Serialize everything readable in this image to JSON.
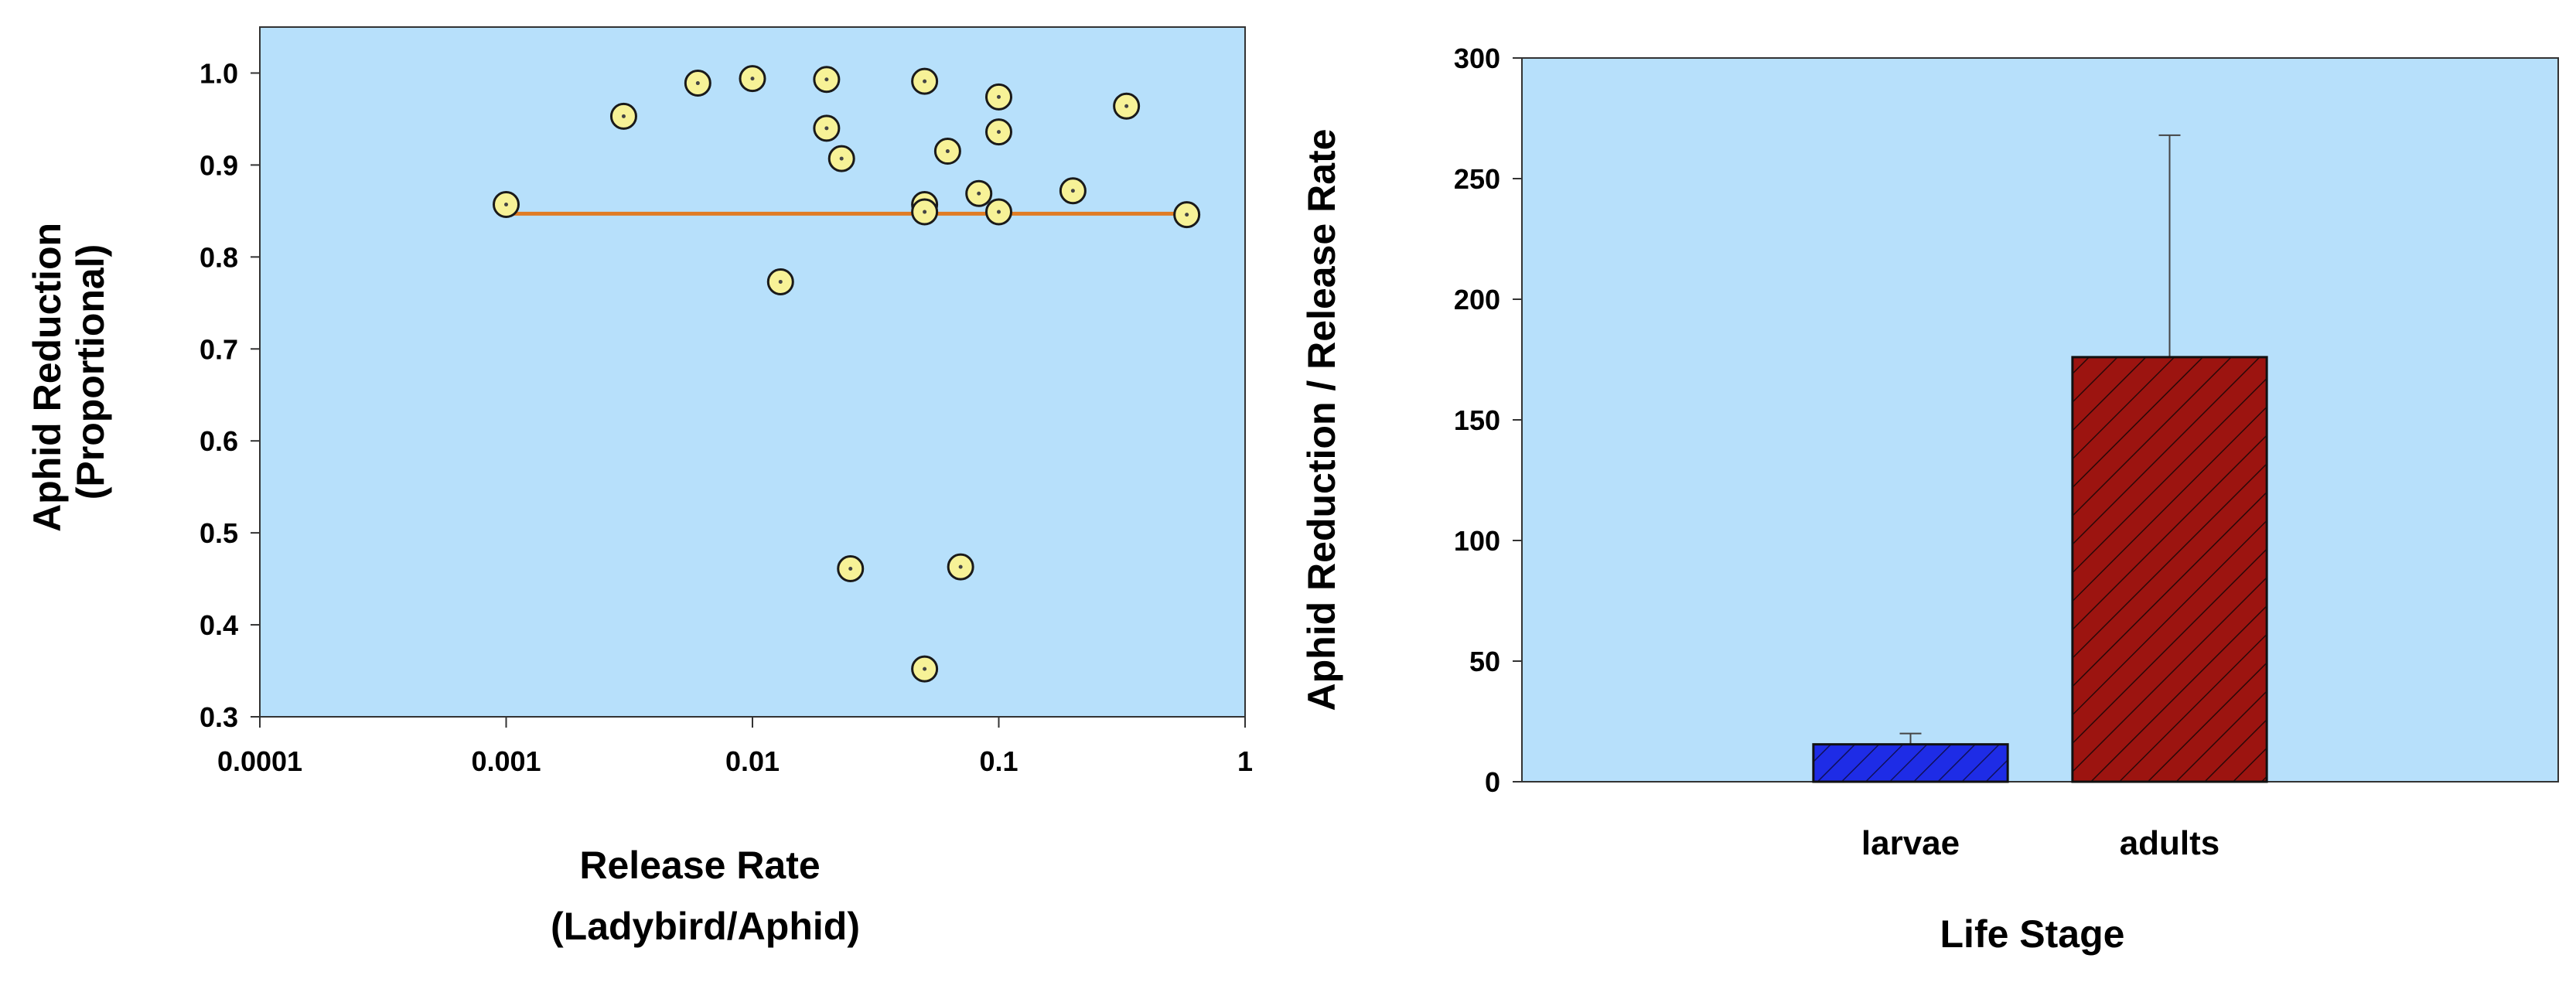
{
  "chart_data": [
    {
      "type": "scatter",
      "xlabel": [
        "Release Rate",
        "(Ladybird/Aphid)"
      ],
      "ylabel": [
        "Aphid Reduction",
        "(Proportional)"
      ],
      "x_scale": "log",
      "xlim": [
        0.0001,
        1
      ],
      "ylim": [
        0.3,
        1.05
      ],
      "x_ticks": [
        0.0001,
        0.001,
        0.01,
        0.1,
        1
      ],
      "x_tick_labels": [
        "0.0001",
        "0.001",
        "0.01",
        "0.1",
        "1"
      ],
      "y_ticks": [
        0.3,
        0.4,
        0.5,
        0.6,
        0.7,
        0.8,
        0.9,
        1.0
      ],
      "y_tick_labels": [
        "0.3",
        "0.4",
        "0.5",
        "0.6",
        "0.7",
        "0.8",
        "0.9",
        "1.0"
      ],
      "points": [
        {
          "x": 0.001,
          "y": 0.857
        },
        {
          "x": 0.003,
          "y": 0.953
        },
        {
          "x": 0.006,
          "y": 0.989
        },
        {
          "x": 0.01,
          "y": 0.994
        },
        {
          "x": 0.013,
          "y": 0.773
        },
        {
          "x": 0.02,
          "y": 0.993
        },
        {
          "x": 0.02,
          "y": 0.94
        },
        {
          "x": 0.023,
          "y": 0.907
        },
        {
          "x": 0.025,
          "y": 0.461
        },
        {
          "x": 0.05,
          "y": 0.991
        },
        {
          "x": 0.05,
          "y": 0.857
        },
        {
          "x": 0.05,
          "y": 0.849
        },
        {
          "x": 0.05,
          "y": 0.352
        },
        {
          "x": 0.062,
          "y": 0.915
        },
        {
          "x": 0.07,
          "y": 0.463
        },
        {
          "x": 0.083,
          "y": 0.869
        },
        {
          "x": 0.1,
          "y": 0.974
        },
        {
          "x": 0.1,
          "y": 0.936
        },
        {
          "x": 0.1,
          "y": 0.849
        },
        {
          "x": 0.2,
          "y": 0.872
        },
        {
          "x": 0.33,
          "y": 0.964
        },
        {
          "x": 0.58,
          "y": 0.846
        }
      ],
      "fit_line": {
        "x": [
          0.001,
          0.58
        ],
        "y": [
          0.847,
          0.847
        ]
      },
      "grid": false,
      "colors": {
        "plot_bg": "#b7e0fb",
        "marker_fill": "#f7f297",
        "marker_edge": "#1a1a1a",
        "fit_line": "#e07c24"
      }
    },
    {
      "type": "bar",
      "categories": [
        "larvae",
        "adults"
      ],
      "values": [
        15.5,
        176
      ],
      "error_upper": [
        4.5,
        92
      ],
      "xlabel": "Life Stage",
      "ylabel": "Aphid Reduction / Release Rate",
      "ylim": [
        0,
        300
      ],
      "y_ticks": [
        0,
        50,
        100,
        150,
        200,
        250,
        300
      ],
      "y_tick_labels": [
        "0",
        "50",
        "100",
        "150",
        "200",
        "250",
        "300"
      ],
      "bar_colors": [
        "#1e2ce6",
        "#9c1410"
      ],
      "hatch": "diagonal",
      "grid": false,
      "colors": {
        "plot_bg": "#b7e0fb"
      }
    }
  ]
}
